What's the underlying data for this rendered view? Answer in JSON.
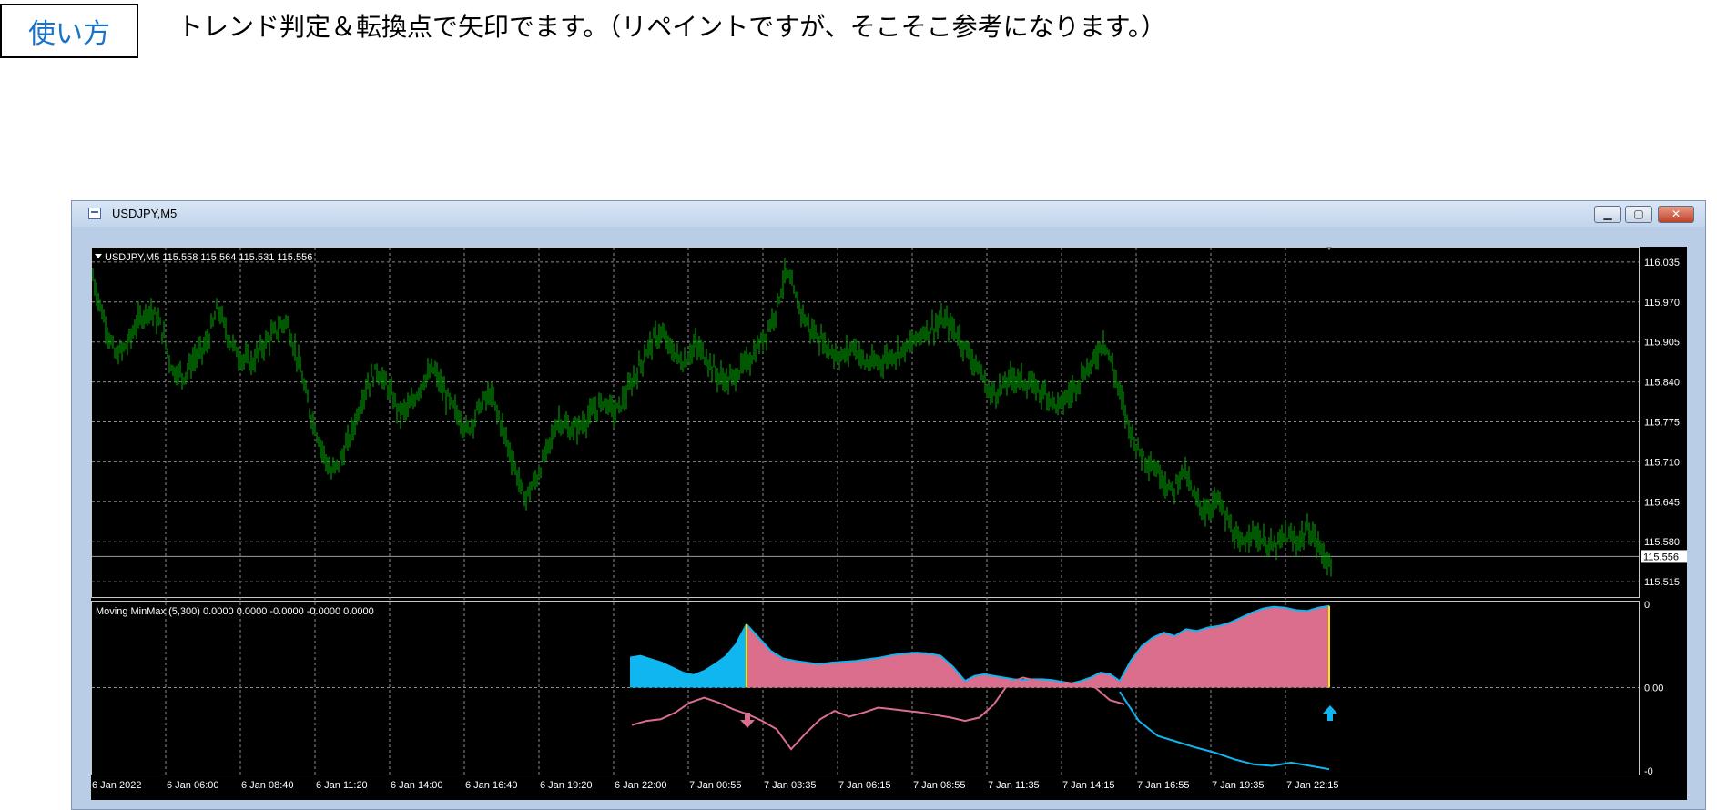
{
  "header": {
    "badge": "使い方",
    "description": "トレンド判定＆転換点で矢印でます。（リペイントですが、そこそこ参考になります。）"
  },
  "window": {
    "title": "USDJPY,M5",
    "icon": "chart-window-icon",
    "buttons": [
      "minimize-icon",
      "restore-icon",
      "close-icon"
    ]
  },
  "chart": {
    "symbol_line": "USDJPY,M5  115.558 115.564 115.531 115.556",
    "indicator_line": "Moving MinMax (5,300) 0.0000 0.0000 -0.0000 -0.0000 0.0000",
    "price_ticks": [
      "116.035",
      "115.970",
      "115.905",
      "115.840",
      "115.775",
      "115.710",
      "115.645",
      "115.580",
      "115.515"
    ],
    "current_price": "115.556",
    "indicator_ticks": [
      "0",
      "0.00",
      "-0"
    ],
    "time_ticks": [
      "6 Jan 2022",
      "6 Jan 06:00",
      "6 Jan 08:40",
      "6 Jan 11:20",
      "6 Jan 14:00",
      "6 Jan 16:40",
      "6 Jan 19:20",
      "6 Jan 22:00",
      "7 Jan 00:55",
      "7 Jan 03:35",
      "7 Jan 06:15",
      "7 Jan 08:55",
      "7 Jan 11:35",
      "7 Jan 14:15",
      "7 Jan 16:55",
      "7 Jan 19:35",
      "7 Jan 22:15"
    ],
    "colors": {
      "background": "#000000",
      "grid": "#8c8c8c",
      "bars": "#00b000",
      "up": "#10b6f0",
      "down": "#db6e8c",
      "signal": "#ffe600"
    },
    "price_path": [
      116.01,
      115.94,
      115.88,
      115.9,
      115.94,
      115.96,
      115.93,
      115.86,
      115.85,
      115.88,
      115.9,
      115.96,
      115.91,
      115.88,
      115.87,
      115.9,
      115.92,
      115.94,
      115.88,
      115.8,
      115.74,
      115.69,
      115.72,
      115.77,
      115.83,
      115.86,
      115.83,
      115.79,
      115.8,
      115.84,
      115.86,
      115.82,
      115.79,
      115.76,
      115.8,
      115.82,
      115.77,
      115.71,
      115.65,
      115.68,
      115.73,
      115.78,
      115.76,
      115.77,
      115.79,
      115.81,
      115.79,
      115.82,
      115.86,
      115.9,
      115.92,
      115.89,
      115.87,
      115.9,
      115.88,
      115.85,
      115.84,
      115.86,
      115.88,
      115.91,
      115.95,
      116.02,
      115.97,
      115.93,
      115.91,
      115.89,
      115.88,
      115.9,
      115.87,
      115.87,
      115.88,
      115.89,
      115.9,
      115.92,
      115.93,
      115.94,
      115.92,
      115.89,
      115.86,
      115.82,
      115.83,
      115.85,
      115.84,
      115.83,
      115.82,
      115.8,
      115.82,
      115.85,
      115.87,
      115.91,
      115.85,
      115.78,
      115.73,
      115.71,
      115.69,
      115.66,
      115.7,
      115.65,
      115.63,
      115.65,
      115.61,
      115.57,
      115.6,
      115.58,
      115.57,
      115.59,
      115.58,
      115.6,
      115.57,
      115.54
    ],
    "indicator": {
      "range": [
        -1,
        1
      ],
      "seg_up1": [
        0.36,
        0.38,
        0.34,
        0.3,
        0.24,
        0.18,
        0.15,
        0.2,
        0.28,
        0.37,
        0.52,
        0.76
      ],
      "seg_down1": [
        0.76,
        0.6,
        0.44,
        0.35,
        0.32,
        0.3,
        0.28,
        0.3,
        0.31,
        0.32,
        0.34,
        0.36,
        0.39,
        0.41,
        0.42,
        0.41,
        0.38,
        0.25,
        0.08
      ],
      "seg_mix": [
        0.08,
        0.14,
        0.16,
        0.14,
        0.12,
        0.1,
        0.09,
        0.1,
        0.1,
        0.09,
        0.07,
        0.05,
        0.08,
        0.12,
        0.18,
        0.16,
        0.08
      ],
      "seg_down2": [
        0.08,
        0.32,
        0.5,
        0.6,
        0.66,
        0.62,
        0.7,
        0.68,
        0.72,
        0.74,
        0.78,
        0.84,
        0.9,
        0.95,
        0.97,
        0.96,
        0.93,
        0.92,
        0.96,
        0.98
      ],
      "osc_pink": [
        -0.45,
        -0.4,
        -0.38,
        -0.3,
        -0.18,
        -0.12,
        -0.18,
        -0.26,
        -0.32,
        -0.4,
        -0.5,
        -0.74,
        -0.55,
        -0.38,
        -0.28,
        -0.35,
        -0.3,
        -0.24,
        -0.26,
        -0.28,
        -0.3,
        -0.33,
        -0.36,
        -0.4,
        -0.36,
        -0.2,
        0.05,
        0.12,
        0.08,
        0.02,
        0.06,
        0.04,
        0.0,
        -0.15,
        -0.2
      ],
      "osc_blue": [
        -0.05,
        -0.4,
        -0.58,
        -0.65,
        -0.72,
        -0.78,
        -0.86,
        -0.92,
        -0.94,
        -0.9,
        -0.94,
        -0.98
      ]
    }
  }
}
